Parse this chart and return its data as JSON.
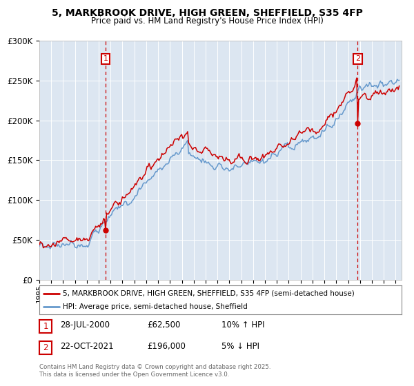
{
  "title_line1": "5, MARKBROOK DRIVE, HIGH GREEN, SHEFFIELD, S35 4FP",
  "title_line2": "Price paid vs. HM Land Registry's House Price Index (HPI)",
  "ylabel_ticks": [
    "£0",
    "£50K",
    "£100K",
    "£150K",
    "£200K",
    "£250K",
    "£300K"
  ],
  "ytick_values": [
    0,
    50000,
    100000,
    150000,
    200000,
    250000,
    300000
  ],
  "ylim": [
    0,
    300000
  ],
  "xlim_start": 1995.0,
  "xlim_end": 2025.5,
  "property_color": "#cc0000",
  "hpi_color": "#6699cc",
  "vline_color": "#cc0000",
  "bg_color": "#dce6f1",
  "marker1_x": 2000.57,
  "marker1_price": 62500,
  "marker2_x": 2021.8,
  "marker2_price": 196000,
  "legend_label1": "5, MARKBROOK DRIVE, HIGH GREEN, SHEFFIELD, S35 4FP (semi-detached house)",
  "legend_label2": "HPI: Average price, semi-detached house, Sheffield",
  "annotation1_date": "28-JUL-2000",
  "annotation1_price": "£62,500",
  "annotation1_hpi": "10% ↑ HPI",
  "annotation2_date": "22-OCT-2021",
  "annotation2_price": "£196,000",
  "annotation2_hpi": "5% ↓ HPI",
  "footnote": "Contains HM Land Registry data © Crown copyright and database right 2025.\nThis data is licensed under the Open Government Licence v3.0."
}
